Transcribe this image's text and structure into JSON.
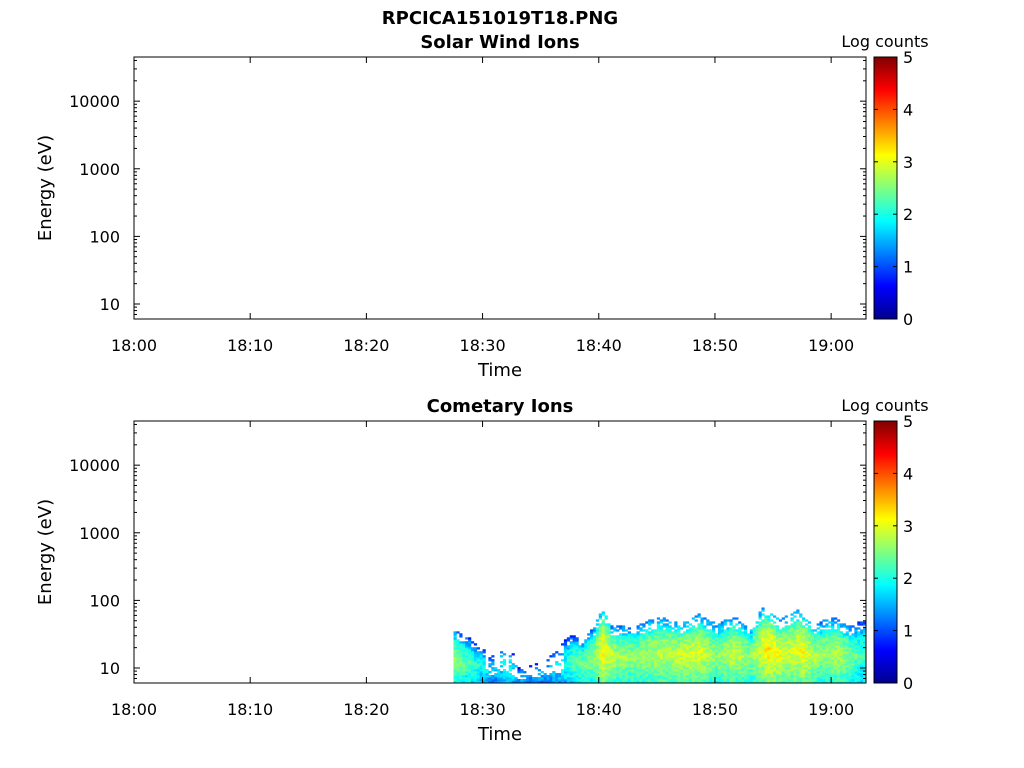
{
  "figure": {
    "title": "RPCICA151019T18.PNG"
  },
  "colormap": [
    "#00008f",
    "#0000ff",
    "#0080ff",
    "#00ffff",
    "#80ff80",
    "#ffff00",
    "#ff8000",
    "#ff0000",
    "#800000"
  ],
  "chart_data": [
    {
      "type": "heatmap",
      "title": "Solar Wind Ions",
      "xlabel": "Time",
      "ylabel": "Energy (eV)",
      "x_ticks": [
        "18:00",
        "18:10",
        "18:20",
        "18:30",
        "18:40",
        "18:50",
        "19:00"
      ],
      "xlim_minutes": [
        0,
        63
      ],
      "y_scale": "log",
      "y_ticks": [
        {
          "value": 10,
          "label": "10"
        },
        {
          "value": 100,
          "label": "100"
        },
        {
          "value": 1000,
          "label": "1000"
        },
        {
          "value": 10000,
          "label": "10000"
        }
      ],
      "ylim": [
        6,
        45000
      ],
      "colorbar": {
        "label": "Log counts",
        "range": [
          0,
          5
        ],
        "ticks": [
          "0",
          "1",
          "2",
          "3",
          "4",
          "5"
        ]
      },
      "cells": []
    },
    {
      "type": "heatmap",
      "title": "Cometary Ions",
      "xlabel": "Time",
      "ylabel": "Energy (eV)",
      "x_ticks": [
        "18:00",
        "18:10",
        "18:20",
        "18:30",
        "18:40",
        "18:50",
        "19:00"
      ],
      "xlim_minutes": [
        0,
        63
      ],
      "y_scale": "log",
      "y_ticks": [
        {
          "value": 10,
          "label": "10"
        },
        {
          "value": 100,
          "label": "100"
        },
        {
          "value": 1000,
          "label": "1000"
        },
        {
          "value": 10000,
          "label": "10000"
        }
      ],
      "ylim": [
        6,
        45000
      ],
      "colorbar": {
        "label": "Log counts",
        "range": [
          0,
          5
        ],
        "ticks": [
          "0",
          "1",
          "2",
          "3",
          "4",
          "5"
        ]
      },
      "activity_profile": {
        "description_minutes_vs_upper_energy_eV": [
          [
            27.5,
            35
          ],
          [
            29.0,
            25
          ],
          [
            30.5,
            15
          ],
          [
            32.0,
            22
          ],
          [
            33.0,
            10
          ],
          [
            35.0,
            12
          ],
          [
            36.5,
            20
          ],
          [
            37.5,
            30
          ],
          [
            38.5,
            25
          ],
          [
            39.5,
            40
          ],
          [
            40.2,
            75
          ],
          [
            41.0,
            40
          ],
          [
            43.0,
            40
          ],
          [
            45.0,
            55
          ],
          [
            47.0,
            45
          ],
          [
            48.5,
            60
          ],
          [
            50.0,
            45
          ],
          [
            51.5,
            55
          ],
          [
            53.0,
            40
          ],
          [
            54.0,
            75
          ],
          [
            55.5,
            50
          ],
          [
            57.0,
            70
          ],
          [
            58.5,
            45
          ],
          [
            60.0,
            55
          ],
          [
            61.5,
            40
          ],
          [
            62.8,
            50
          ]
        ],
        "peak_log_counts_by_minute": [
          [
            27.5,
            2.6
          ],
          [
            29.0,
            2.2
          ],
          [
            31.0,
            1.6
          ],
          [
            32.0,
            2.0
          ],
          [
            34.0,
            1.4
          ],
          [
            36.5,
            1.8
          ],
          [
            38.0,
            2.4
          ],
          [
            39.5,
            2.6
          ],
          [
            40.2,
            3.2
          ],
          [
            41.5,
            2.7
          ],
          [
            43.0,
            2.6
          ],
          [
            45.0,
            2.8
          ],
          [
            47.0,
            2.9
          ],
          [
            48.5,
            3.0
          ],
          [
            50.0,
            2.6
          ],
          [
            51.5,
            2.9
          ],
          [
            53.0,
            2.6
          ],
          [
            54.5,
            3.3
          ],
          [
            56.0,
            2.9
          ],
          [
            57.5,
            3.1
          ],
          [
            59.0,
            2.6
          ],
          [
            60.5,
            2.8
          ],
          [
            62.5,
            2.2
          ]
        ]
      }
    }
  ]
}
